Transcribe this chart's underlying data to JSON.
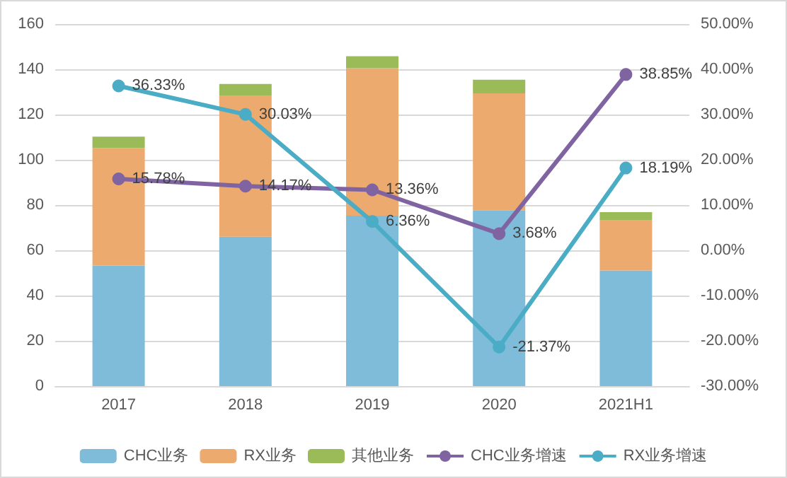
{
  "chart_data": {
    "type": "bar",
    "stacked": true,
    "categories": [
      "2017",
      "2018",
      "2019",
      "2020",
      "2021H1"
    ],
    "series": [
      {
        "name": "CHC业务",
        "color": "#7fbcd9",
        "values": [
          53.3,
          66.0,
          75.3,
          77.7,
          51.1
        ]
      },
      {
        "name": "RX业务",
        "color": "#edaa6f",
        "values": [
          51.9,
          62.2,
          65.2,
          51.7,
          22.1
        ]
      },
      {
        "name": "其他业务",
        "color": "#9bbb59",
        "values": [
          5.0,
          5.3,
          5.3,
          6.0,
          3.7
        ]
      },
      {
        "name": "CHC业务增速",
        "type": "line",
        "axis": "y2",
        "color": "#8064a2",
        "marker": "circle",
        "values": [
          15.78,
          14.17,
          13.36,
          3.68,
          38.85
        ],
        "value_labels": [
          "15.78%",
          "14.17%",
          "13.36%",
          "3.68%",
          "38.85%"
        ]
      },
      {
        "name": "RX业务增速",
        "type": "line",
        "axis": "y2",
        "color": "#4bacc6",
        "marker": "circle",
        "values": [
          36.33,
          30.03,
          6.36,
          -21.37,
          18.19
        ],
        "value_labels": [
          "36.33%",
          "30.03%",
          "6.36%",
          "-21.37%",
          "18.19%"
        ]
      }
    ],
    "ylim": [
      0,
      160
    ],
    "yticks": [
      0,
      20,
      40,
      60,
      80,
      100,
      120,
      140,
      160
    ],
    "y2lim": [
      -30,
      50
    ],
    "y2ticks": [
      {
        "value": -30,
        "label": "-30.00%"
      },
      {
        "value": -20,
        "label": "-20.00%"
      },
      {
        "value": -10,
        "label": "-10.00%"
      },
      {
        "value": 0,
        "label": "0.00%"
      },
      {
        "value": 10,
        "label": "10.00%"
      },
      {
        "value": 20,
        "label": "20.00%"
      },
      {
        "value": 30,
        "label": "30.00%"
      },
      {
        "value": 40,
        "label": "40.00%"
      },
      {
        "value": 50,
        "label": "50.00%"
      }
    ],
    "grid": "y",
    "legend": "bottom"
  }
}
